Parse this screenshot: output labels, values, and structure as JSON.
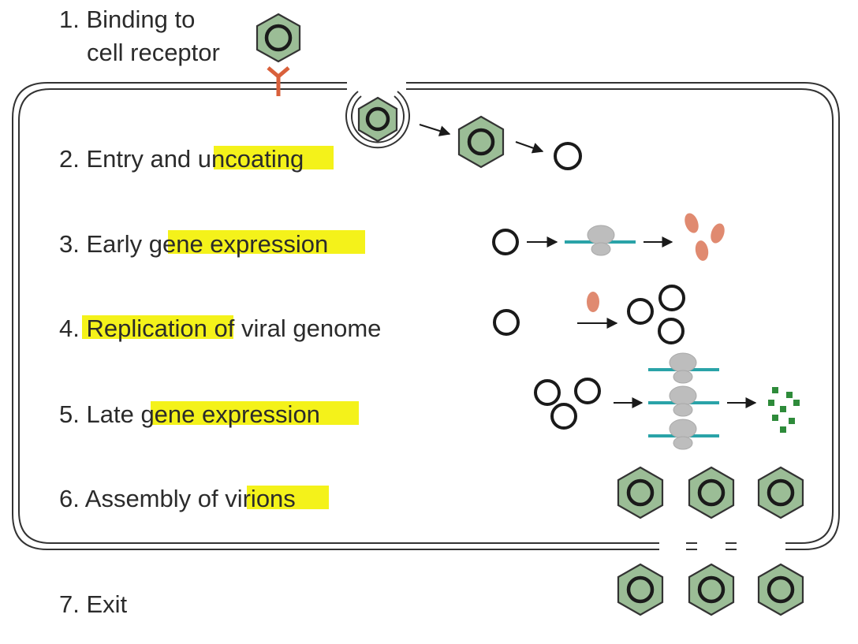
{
  "steps": [
    {
      "number": "1.",
      "lines": [
        "Binding to",
        "cell receptor"
      ]
    },
    {
      "number": "2.",
      "before": "Entry and ",
      "highlight": "uncoating",
      "after": ""
    },
    {
      "number": "3.",
      "before": "Early ",
      "highlight": "gene expression",
      "after": ""
    },
    {
      "number": "4.",
      "before": "",
      "highlight": "Replication",
      "after": " of viral genome"
    },
    {
      "number": "5.",
      "before": "Late ",
      "highlight": "gene expression",
      "after": ""
    },
    {
      "number": "6.",
      "before": "Assembly of ",
      "highlight": "virions",
      "after": ""
    },
    {
      "number": "7.",
      "before": "Exit",
      "highlight": "",
      "after": ""
    }
  ],
  "colors": {
    "highlight": "#f4f21a",
    "capsid": "#9bbd96",
    "receptor": "#d9603b",
    "mrna": "#2aa3a8",
    "early_protein": "#e08a70",
    "capsid_protein": "#2e8b3a",
    "ribosome": "#bdbdbd"
  }
}
